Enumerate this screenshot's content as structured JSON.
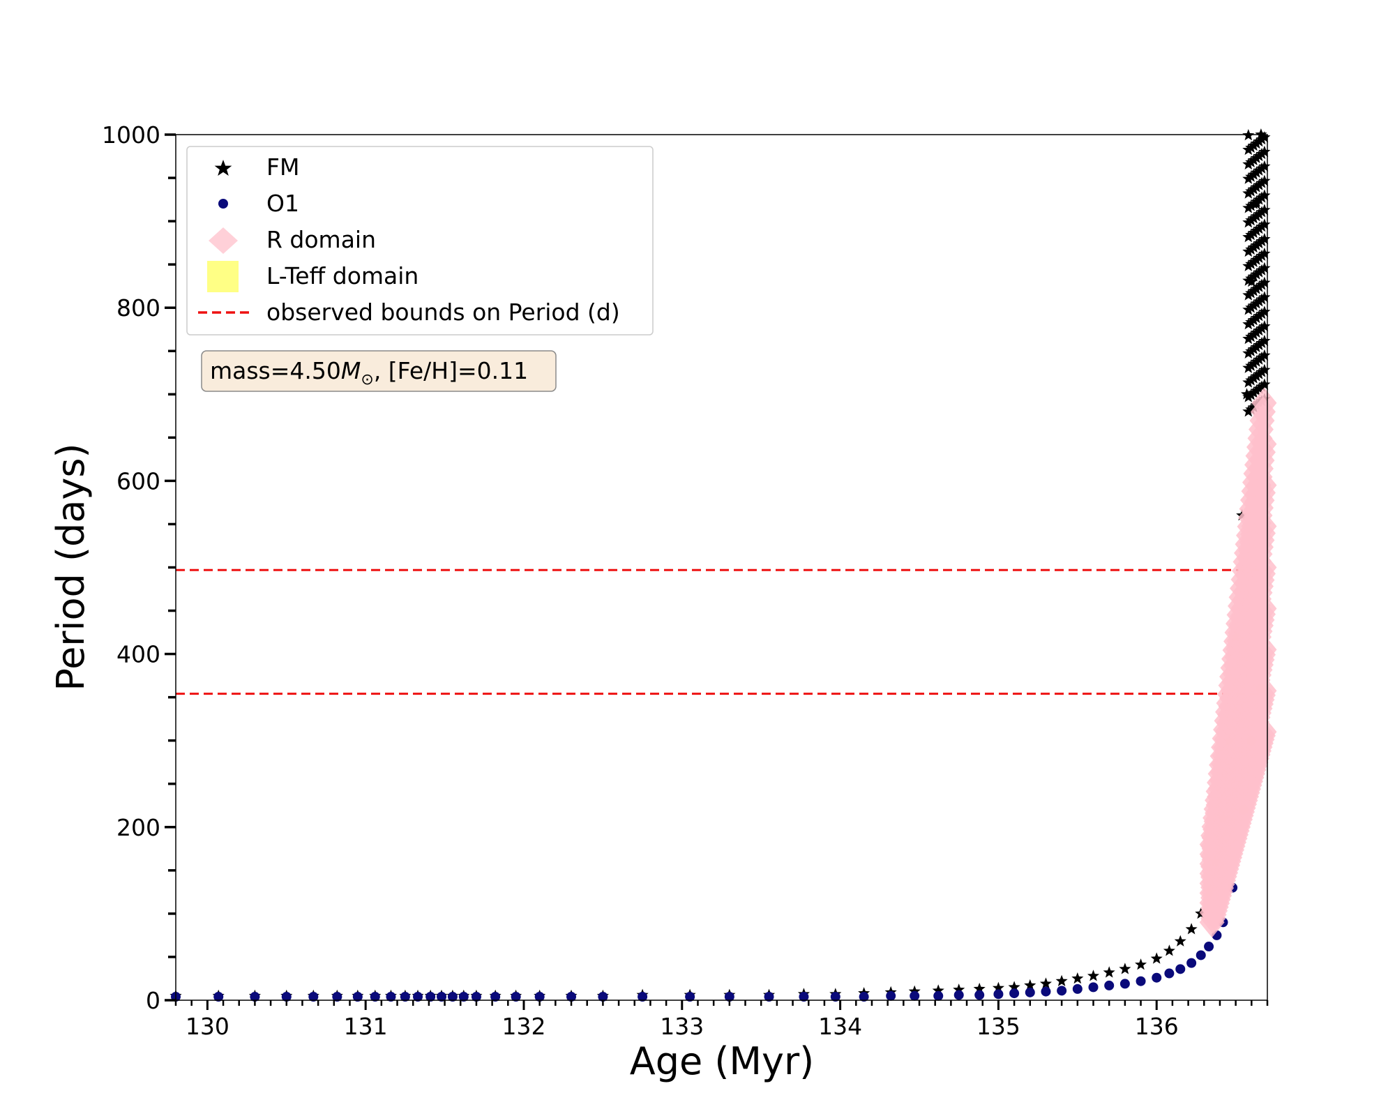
{
  "chart_data": {
    "type": "scatter",
    "xlabel": "Age (Myr)",
    "ylabel": "Period (days)",
    "xlim": [
      129.8,
      136.7
    ],
    "ylim": [
      0,
      1000
    ],
    "xticks": [
      130,
      131,
      132,
      133,
      134,
      135,
      136
    ],
    "yticks": [
      0,
      200,
      400,
      600,
      800,
      1000
    ],
    "legend_position": "upper-left",
    "legend": [
      {
        "label": "FM",
        "marker": "star",
        "color": "#000000"
      },
      {
        "label": "O1",
        "marker": "circle",
        "color": "#0a0a7a"
      },
      {
        "label": "R domain",
        "marker": "diamond",
        "color": "#ffc0cb"
      },
      {
        "label": "L-Teff domain",
        "marker": "square",
        "color": "#ffff66"
      },
      {
        "label": "observed bounds on Period (d)",
        "marker": "dashed-line",
        "color": "#ee1111"
      }
    ],
    "annotation": {
      "prefix": "mass=4.50",
      "mass_symbol": "M",
      "sun_symbol": "⊙",
      "suffix": ", [Fe/H]=0.11"
    },
    "observed_bounds": [
      354,
      497
    ],
    "series": [
      {
        "name": "FM",
        "x": [
          129.8,
          130.07,
          130.3,
          130.5,
          130.67,
          130.82,
          130.95,
          131.06,
          131.16,
          131.25,
          131.33,
          131.41,
          131.48,
          131.55,
          131.62,
          131.7,
          131.82,
          131.95,
          132.1,
          132.3,
          132.5,
          132.75,
          133.05,
          133.3,
          133.55,
          133.77,
          133.97,
          134.15,
          134.32,
          134.47,
          134.62,
          134.75,
          134.88,
          135.0,
          135.1,
          135.2,
          135.3,
          135.4,
          135.5,
          135.6,
          135.7,
          135.8,
          135.9,
          136.0,
          136.08,
          136.15,
          136.22,
          136.28,
          136.33,
          136.37,
          136.42,
          136.46,
          136.5,
          136.54,
          136.57,
          136.6,
          136.63,
          136.66
        ],
        "y": [
          5,
          5,
          5,
          5,
          5,
          5,
          5,
          5,
          5,
          5,
          5,
          5,
          5,
          5,
          5,
          5,
          5,
          5,
          5,
          5,
          5,
          6,
          6,
          6,
          6,
          7,
          7,
          8,
          9,
          10,
          11,
          12,
          13,
          14,
          15,
          17,
          19,
          22,
          25,
          28,
          32,
          36,
          41,
          48,
          57,
          68,
          82,
          100,
          125,
          160,
          210,
          300,
          420,
          560,
          700,
          830,
          920,
          1000
        ]
      },
      {
        "name": "O1",
        "x": [
          129.8,
          130.07,
          130.3,
          130.5,
          130.67,
          130.82,
          130.95,
          131.06,
          131.16,
          131.25,
          131.33,
          131.41,
          131.48,
          131.55,
          131.62,
          131.7,
          131.82,
          131.95,
          132.1,
          132.3,
          132.5,
          132.75,
          133.05,
          133.3,
          133.55,
          133.77,
          133.97,
          134.15,
          134.32,
          134.47,
          134.62,
          134.75,
          134.88,
          135.0,
          135.1,
          135.2,
          135.3,
          135.4,
          135.5,
          135.6,
          135.7,
          135.8,
          135.9,
          136.0,
          136.08,
          136.15,
          136.22,
          136.28,
          136.33,
          136.38,
          136.42,
          136.48,
          136.55,
          136.6,
          136.66
        ],
        "y": [
          4,
          4,
          4,
          4,
          4,
          4,
          4,
          4,
          4,
          4,
          4,
          4,
          4,
          4,
          4,
          4,
          4,
          4,
          4,
          4,
          4,
          4,
          4,
          4,
          4,
          4,
          4,
          4,
          5,
          5,
          5,
          6,
          6,
          7,
          8,
          9,
          10,
          11,
          13,
          15,
          17,
          19,
          22,
          26,
          31,
          36,
          43,
          52,
          62,
          75,
          90,
          130,
          220,
          300,
          360
        ]
      },
      {
        "name": "R domain",
        "x_range": [
          136.35,
          136.7
        ],
        "y_range": [
          90,
          690
        ]
      }
    ]
  }
}
